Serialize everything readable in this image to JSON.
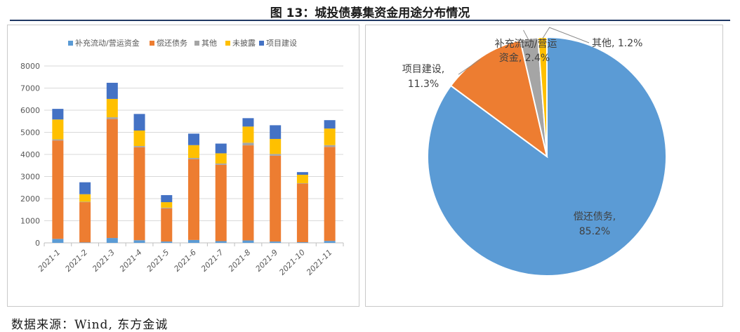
{
  "page": {
    "title": "图 13：城投债募集资金用途分布情况",
    "source": "数据来源：Wind, 东方金诚"
  },
  "chart_data": [
    {
      "type": "bar",
      "stacked": true,
      "categories": [
        "2021-1",
        "2021-2",
        "2021-3",
        "2021-4",
        "2021-5",
        "2021-6",
        "2021-7",
        "2021-8",
        "2021-9",
        "2021-10",
        "2021-11"
      ],
      "series": [
        {
          "name": "补充流动/营运资金",
          "color": "#5b9bd5",
          "values": [
            180,
            20,
            220,
            120,
            60,
            130,
            80,
            110,
            60,
            30,
            90
          ]
        },
        {
          "name": "偿还债务",
          "color": "#ed7d31",
          "values": [
            4450,
            1820,
            5380,
            4200,
            1500,
            3650,
            3450,
            4300,
            3880,
            2650,
            4250
          ]
        },
        {
          "name": "其他",
          "color": "#a5a5a5",
          "values": [
            50,
            20,
            80,
            60,
            30,
            60,
            60,
            120,
            80,
            20,
            80
          ]
        },
        {
          "name": "未披露",
          "color": "#ffc000",
          "values": [
            900,
            340,
            830,
            700,
            250,
            580,
            460,
            730,
            680,
            380,
            750
          ]
        },
        {
          "name": "项目建设",
          "color": "#4472c4",
          "values": [
            480,
            540,
            730,
            750,
            320,
            520,
            440,
            380,
            620,
            120,
            380
          ]
        }
      ],
      "ylim": [
        0,
        8000
      ],
      "yticks": [
        "0",
        "1000",
        "2000",
        "3000",
        "4000",
        "5000",
        "6000",
        "7000",
        "8000"
      ],
      "grid": true,
      "legend": "top"
    },
    {
      "type": "pie",
      "slices": [
        {
          "label": "偿还债务,",
          "pct_label": "85.2%",
          "value": 85.2,
          "color": "#5b9bd5"
        },
        {
          "label": "项目建设,",
          "pct_label": "11.3%",
          "value": 11.3,
          "color": "#ed7d31"
        },
        {
          "label": "补充流动/营运",
          "label2": "资金, 2.4%",
          "value": 2.4,
          "color": "#a5a5a5"
        },
        {
          "label": "其他, 1.2%",
          "value": 1.2,
          "color": "#ffc000"
        }
      ]
    }
  ]
}
